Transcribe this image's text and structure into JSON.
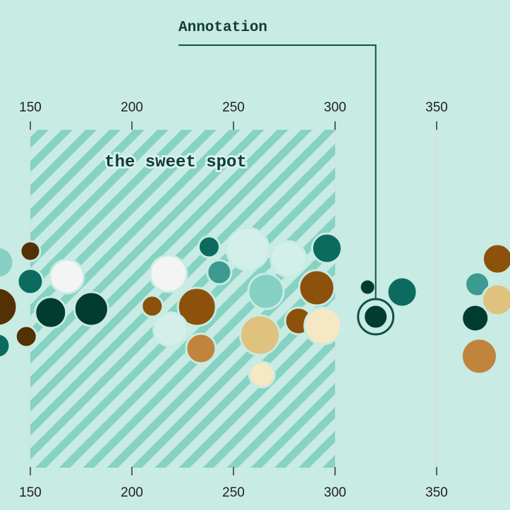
{
  "chart_data": {
    "type": "scatter",
    "style": "beeswarm",
    "title": "",
    "xlabel": "",
    "ylabel": "",
    "xlim": [
      135,
      385
    ],
    "x_ticks": [
      150,
      200,
      250,
      300,
      350
    ],
    "x_tick_labels": [
      "150",
      "200",
      "250",
      "300",
      "350"
    ],
    "grid": true,
    "highlight_band": {
      "x_range": [
        150,
        300
      ],
      "label": "the sweet spot",
      "pattern": "diagonal-stripes"
    },
    "annotation": {
      "label": "Annotation",
      "target_x": 320
    },
    "palette": {
      "c0": "#003c30",
      "c1": "#0c6b5f",
      "c2": "#3c9a90",
      "c3": "#86cfc3",
      "c4": "#d2f0e9",
      "c5": "#f4f4f4",
      "c6": "#f6e8c3",
      "c7": "#dfc27d",
      "c8": "#c0843c",
      "c9": "#8c510a",
      "c10": "#543005"
    },
    "points": [
      {
        "x": 134,
        "c": "c3"
      },
      {
        "x": 134,
        "c": "c10"
      },
      {
        "x": 134,
        "c": "c1"
      },
      {
        "x": 150,
        "c": "c10"
      },
      {
        "x": 150,
        "c": "c1"
      },
      {
        "x": 148,
        "c": "c10"
      },
      {
        "x": 168,
        "c": "c5"
      },
      {
        "x": 160,
        "c": "c0"
      },
      {
        "x": 180,
        "c": "c0"
      },
      {
        "x": 218,
        "c": "c5"
      },
      {
        "x": 210,
        "c": "c9"
      },
      {
        "x": 238,
        "c": "c1"
      },
      {
        "x": 243,
        "c": "c2"
      },
      {
        "x": 232,
        "c": "c9"
      },
      {
        "x": 219,
        "c": "c4"
      },
      {
        "x": 234,
        "c": "c8"
      },
      {
        "x": 257,
        "c": "c4"
      },
      {
        "x": 266,
        "c": "c3"
      },
      {
        "x": 263,
        "c": "c7"
      },
      {
        "x": 264,
        "c": "c6"
      },
      {
        "x": 277,
        "c": "c4"
      },
      {
        "x": 296,
        "c": "c1"
      },
      {
        "x": 291,
        "c": "c9"
      },
      {
        "x": 282,
        "c": "c9"
      },
      {
        "x": 294,
        "c": "c6"
      },
      {
        "x": 316,
        "c": "c0"
      },
      {
        "x": 320,
        "c": "c0",
        "highlight": true
      },
      {
        "x": 333,
        "c": "c1"
      },
      {
        "x": 380,
        "c": "c9"
      },
      {
        "x": 370,
        "c": "c2"
      },
      {
        "x": 380,
        "c": "c7"
      },
      {
        "x": 369,
        "c": "c0"
      },
      {
        "x": 371,
        "c": "c8"
      }
    ]
  }
}
